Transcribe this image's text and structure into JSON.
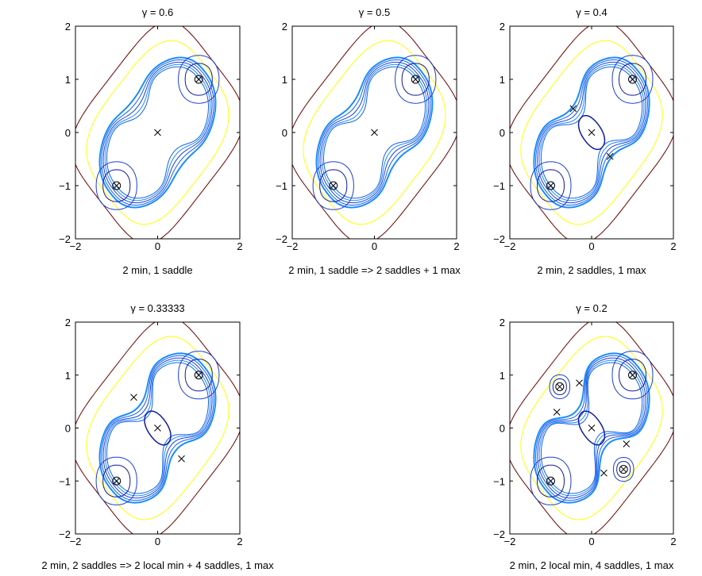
{
  "chart_data": [
    {
      "type": "contour",
      "title": "γ = 0.6",
      "xlabel": "2 min, 1 saddle",
      "xlim": [
        -2,
        2
      ],
      "ylim": [
        -2,
        2
      ],
      "xticks": [
        "−2",
        "0",
        "2"
      ],
      "yticks": [
        "2",
        "1",
        "0",
        "−1",
        "−2"
      ],
      "critical_points": [
        {
          "kind": "min",
          "x": 1,
          "y": 1
        },
        {
          "kind": "min",
          "x": -1,
          "y": -1
        },
        {
          "kind": "saddle",
          "x": 0,
          "y": 0
        }
      ]
    },
    {
      "type": "contour",
      "title": "γ = 0.5",
      "xlabel": "2 min, 1 saddle => 2 saddles + 1 max",
      "xlim": [
        -2,
        2
      ],
      "ylim": [
        -2,
        2
      ],
      "xticks": [
        "−2",
        "0",
        "2"
      ],
      "yticks": [
        "2",
        "1",
        "0",
        "−1",
        "−2"
      ],
      "critical_points": [
        {
          "kind": "min",
          "x": 1,
          "y": 1
        },
        {
          "kind": "min",
          "x": -1,
          "y": -1
        },
        {
          "kind": "saddle",
          "x": 0,
          "y": 0
        }
      ]
    },
    {
      "type": "contour",
      "title": "γ = 0.4",
      "xlabel": "2 min, 2 saddles, 1 max",
      "xlim": [
        -2,
        2
      ],
      "ylim": [
        -2,
        2
      ],
      "xticks": [
        "−2",
        "0",
        "2"
      ],
      "yticks": [
        "2",
        "1",
        "0",
        "−1",
        "−2"
      ],
      "critical_points": [
        {
          "kind": "min",
          "x": 1,
          "y": 1
        },
        {
          "kind": "min",
          "x": -1,
          "y": -1
        },
        {
          "kind": "max",
          "x": 0,
          "y": 0
        },
        {
          "kind": "saddle",
          "x": -0.45,
          "y": 0.45
        },
        {
          "kind": "saddle",
          "x": 0.45,
          "y": -0.45
        }
      ]
    },
    {
      "type": "contour",
      "title": "γ = 0.33333",
      "xlabel": "2 min, 2 saddles => 2 local min + 4 saddles, 1 max",
      "xlim": [
        -2,
        2
      ],
      "ylim": [
        -2,
        2
      ],
      "xticks": [
        "−2",
        "0",
        "2"
      ],
      "yticks": [
        "2",
        "1",
        "0",
        "−1",
        "−2"
      ],
      "critical_points": [
        {
          "kind": "min",
          "x": 1,
          "y": 1
        },
        {
          "kind": "min",
          "x": -1,
          "y": -1
        },
        {
          "kind": "max",
          "x": 0,
          "y": 0
        },
        {
          "kind": "saddle",
          "x": -0.58,
          "y": 0.58
        },
        {
          "kind": "saddle",
          "x": 0.58,
          "y": -0.58
        }
      ]
    },
    {
      "type": "contour",
      "title": "γ = 0.2",
      "xlabel": "2 min, 2 local min, 4 saddles, 1 max",
      "xlim": [
        -2,
        2
      ],
      "ylim": [
        -2,
        2
      ],
      "xticks": [
        "−2",
        "0",
        "2"
      ],
      "yticks": [
        "2",
        "1",
        "0",
        "−1",
        "−2"
      ],
      "critical_points": [
        {
          "kind": "min",
          "x": 1,
          "y": 1
        },
        {
          "kind": "min",
          "x": -1,
          "y": -1
        },
        {
          "kind": "min",
          "x": -0.78,
          "y": 0.78
        },
        {
          "kind": "min",
          "x": 0.78,
          "y": -0.78
        },
        {
          "kind": "max",
          "x": 0,
          "y": 0
        },
        {
          "kind": "saddle",
          "x": -0.3,
          "y": 0.85
        },
        {
          "kind": "saddle",
          "x": 0.3,
          "y": -0.85
        },
        {
          "kind": "saddle",
          "x": -0.85,
          "y": 0.3
        },
        {
          "kind": "saddle",
          "x": 0.85,
          "y": -0.3
        }
      ]
    }
  ]
}
